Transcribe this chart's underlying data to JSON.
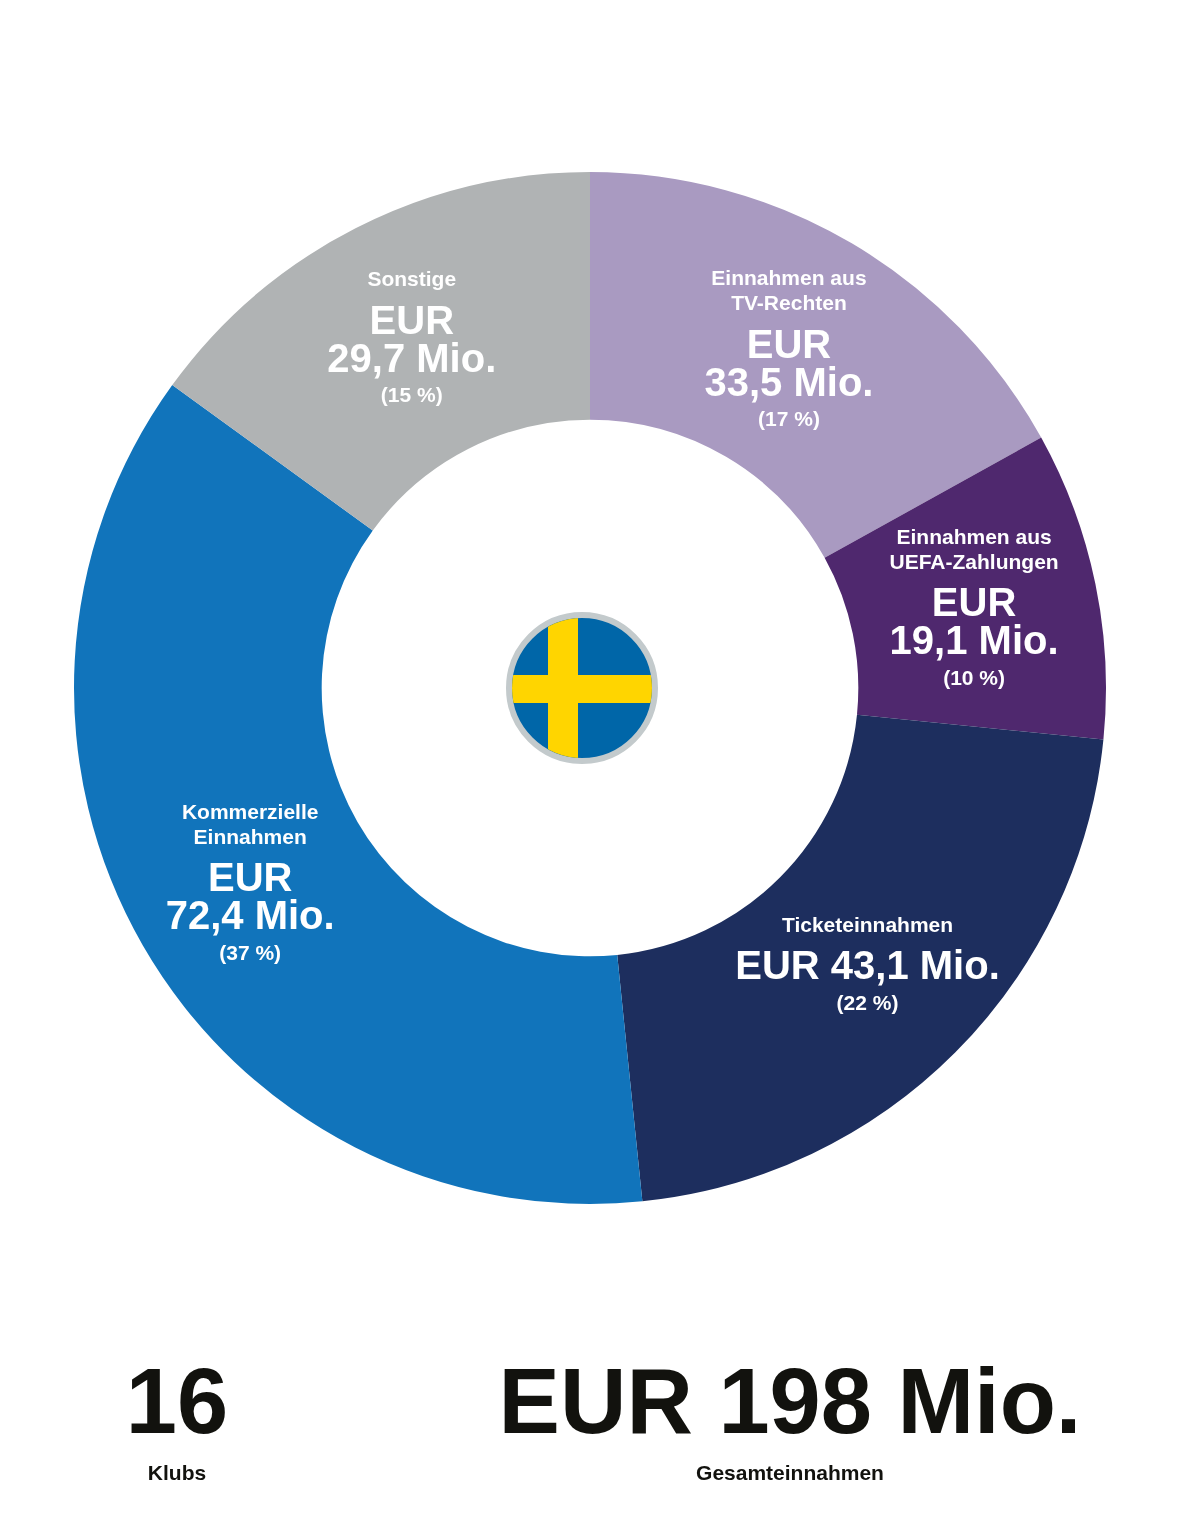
{
  "chart_data": {
    "type": "donut",
    "categories": [
      "Einnahmen aus\nTV-Rechten",
      "Einnahmen aus\nUEFA-Zahlungen",
      "Ticketeinnahmen",
      "Kommerzielle\nEinnahmen",
      "Sonstige"
    ],
    "values": [
      33.5,
      19.1,
      43.1,
      72.4,
      29.7
    ],
    "colors": [
      "#a99ac1",
      "#4f286e",
      "#1d2e5e",
      "#1174bb",
      "#b0b3b4"
    ],
    "value_labels": [
      "EUR\n33,5 Mio.\n(17 %)",
      "EUR\n19,1 Mio.\n(10 %)",
      "EUR 43,1 Mio.\n(22 %)",
      "EUR\n72,4 Mio.\n(37 %)",
      "EUR\n29,7 Mio.\n(15 %)"
    ],
    "annotations": [
      "16",
      "Klubs",
      "EUR 198 Mio.",
      "Gesamteinnahmen"
    ]
  }
}
